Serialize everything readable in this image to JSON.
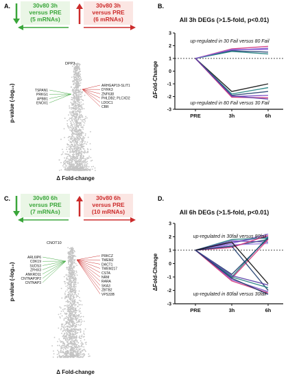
{
  "colors": {
    "green": "#3aa63a",
    "red": "#cc2b2b",
    "volcano_grey": "#c4c4c4",
    "line_purple": "#7a4fc8",
    "line_navy": "#1f3d6e",
    "line_teal": "#1f7f7f",
    "line_pink": "#d4327a",
    "line_black": "#111111"
  },
  "panels": {
    "A": {
      "label": "A.",
      "left_box": {
        "title": "30v80 3h",
        "line2": "versus PRE",
        "line3": "(5 mRNAs)"
      },
      "right_box": {
        "title": "30v80 3h",
        "line2": "versus PRE",
        "line3": "(6 mRNAs)"
      },
      "ylabel": "p-value (-log₁₀)",
      "xlabel": "Δ Fold-change",
      "top_gene": "DPP3",
      "left_genes": [
        "TSPAN1",
        "PRKG1",
        "APBB1",
        "ENOX1"
      ],
      "right_genes": [
        "ARHGAP19-SLIT1",
        "DYRK3",
        "ZNF638",
        "PHLDB2; PLCXD2",
        "LDOC1",
        "CBR"
      ]
    },
    "C": {
      "label": "C.",
      "left_box": {
        "title": "30v80 6h",
        "line2": "versus PRE",
        "line3": "(7 mRNAs)"
      },
      "right_box": {
        "title": "30v80 6h",
        "line2": "versus PRE",
        "line3": "(10 mRNAs)"
      },
      "ylabel": "p-value (-log₁₀)",
      "xlabel": "Δ Fold-change",
      "top_gene": "CNOT10",
      "left_genes": [
        "ARL6IP6",
        "CDK19",
        "SUDS3",
        "ZFHX3",
        "ANKRD11",
        "CNTNAP3P2",
        "CNTNAP3"
      ],
      "right_genes": [
        "PRKCZ",
        "TMEM2",
        "DACT1",
        "TMEM217",
        "CSTA",
        "NRM",
        "RARA",
        "SKA3",
        "ZBTB2",
        "VPS33B"
      ]
    },
    "B": {
      "label": "B.",
      "chart_data": {
        "type": "line",
        "title": "All 3h DEGs (>1.5-fold, p<0.01)",
        "ylabel": "ΔFold-Change",
        "categories": [
          "PRE",
          "3h",
          "6h"
        ],
        "ylim": [
          -3,
          3
        ],
        "yticks": [
          -3,
          -2,
          -1,
          0,
          1,
          2,
          3
        ],
        "reference_line": 1,
        "annotation_top": "up-regulated in 30 Fail versus 80 Fail",
        "annotation_bottom": "up-regulated in 80 Fail versus 30 Fail",
        "series": [
          {
            "values": [
              1,
              1.75,
              1.95
            ],
            "color": "#d4327a"
          },
          {
            "values": [
              1,
              1.65,
              1.8
            ],
            "color": "#7a4fc8"
          },
          {
            "values": [
              1,
              1.6,
              1.5
            ],
            "color": "#1f3d6e"
          },
          {
            "values": [
              1,
              1.55,
              1.35
            ],
            "color": "#1f7f7f"
          },
          {
            "values": [
              1,
              1.7,
              1.7
            ],
            "color": "#8a5fd8"
          },
          {
            "values": [
              1,
              -1.6,
              -1.0
            ],
            "color": "#111111"
          },
          {
            "values": [
              1,
              -1.8,
              -1.3
            ],
            "color": "#1f7f7f"
          },
          {
            "values": [
              1,
              -1.9,
              -1.6
            ],
            "color": "#1f3d6e"
          },
          {
            "values": [
              1,
              -2.0,
              -1.9
            ],
            "color": "#7a4fc8"
          },
          {
            "values": [
              1,
              -2.05,
              -2.1
            ],
            "color": "#d4327a"
          },
          {
            "values": [
              1,
              -1.95,
              -2.2
            ],
            "color": "#5a3fa8"
          }
        ]
      }
    },
    "D": {
      "label": "D.",
      "chart_data": {
        "type": "line",
        "title": "All 6h DEGs (>1.5-fold,  p<0.01)",
        "ylabel": "ΔFold-Change",
        "categories": [
          "PRE",
          "3h",
          "6h"
        ],
        "ylim": [
          -3,
          3
        ],
        "yticks": [
          -3,
          -2,
          -1,
          0,
          1,
          2,
          3
        ],
        "reference_line": 1,
        "annotation_top": "up-regulated in 30fail versus 80fail",
        "annotation_bottom": "up-regulated in 80fail versus 30fail",
        "series": [
          {
            "values": [
              1,
              1.5,
              2.2
            ],
            "color": "#8a5fd8"
          },
          {
            "values": [
              1,
              1.6,
              2.0
            ],
            "color": "#7a4fc8"
          },
          {
            "values": [
              1,
              1.3,
              1.8
            ],
            "color": "#1f3d6e"
          },
          {
            "values": [
              1,
              1.8,
              1.9
            ],
            "color": "#1f7f7f"
          },
          {
            "values": [
              1,
              1.4,
              1.5
            ],
            "color": "#9a7fe0"
          },
          {
            "values": [
              1,
              1.7,
              1.6
            ],
            "color": "#5a3fa8"
          },
          {
            "values": [
              1,
              1.2,
              2.1
            ],
            "color": "#d4327a"
          },
          {
            "values": [
              1,
              -1.0,
              2.0
            ],
            "color": "#1f7f7f"
          },
          {
            "values": [
              1,
              -0.8,
              1.9
            ],
            "color": "#1f3d6e"
          },
          {
            "values": [
              1,
              -1.1,
              1.8
            ],
            "color": "#d4327a"
          },
          {
            "values": [
              1,
              1.3,
              -2.0
            ],
            "color": "#1f3d6e"
          },
          {
            "values": [
              1,
              1.6,
              -1.5
            ],
            "color": "#111111"
          },
          {
            "values": [
              1,
              -1.0,
              -1.8
            ],
            "color": "#1f7f7f"
          },
          {
            "values": [
              1,
              -1.2,
              -2.1
            ],
            "color": "#7a4fc8"
          },
          {
            "values": [
              1,
              -1.3,
              -2.2
            ],
            "color": "#d4327a"
          },
          {
            "values": [
              1,
              -0.9,
              -1.6
            ],
            "color": "#5a3fa8"
          },
          {
            "values": [
              1,
              -1.1,
              -2.3
            ],
            "color": "#1f3d6e"
          }
        ]
      }
    }
  }
}
